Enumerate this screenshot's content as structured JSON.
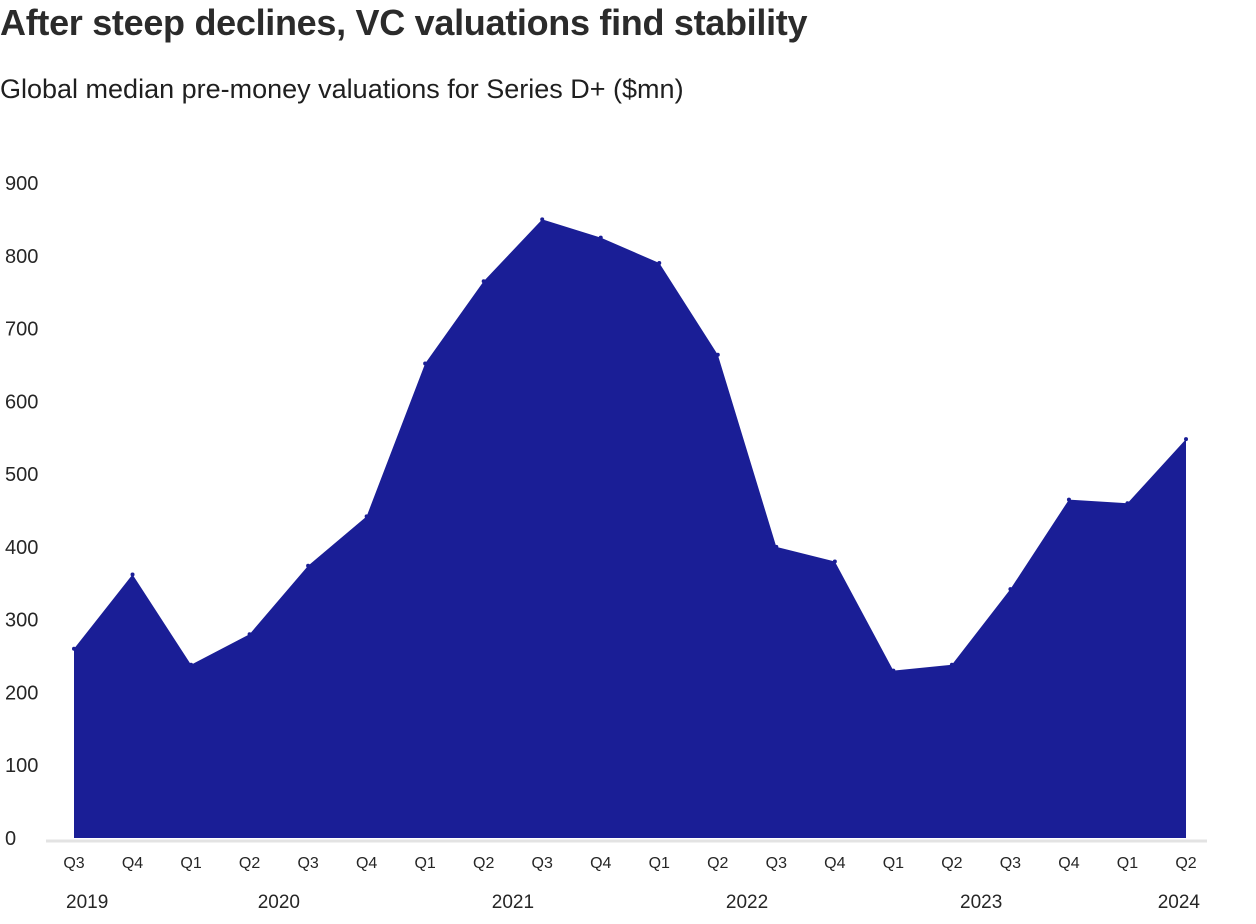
{
  "title": "After steep declines, VC valuations find stability",
  "subtitle": "Global median pre-money valuations for Series D+ ($mn)",
  "colors": {
    "area": "#1a1e96",
    "baseline": "#e3e3e3",
    "text": "#262626"
  },
  "chart_data": {
    "type": "area",
    "title": "After steep declines, VC valuations find stability",
    "subtitle": "Global median pre-money valuations for Series D+ ($mn)",
    "xlabel": "",
    "ylabel": "",
    "ylim": [
      0,
      900
    ],
    "yticks": [
      0,
      100,
      200,
      300,
      400,
      500,
      600,
      700,
      800,
      900
    ],
    "grid": false,
    "legend": "none",
    "categories": [
      "Q3",
      "Q4",
      "Q1",
      "Q2",
      "Q3",
      "Q4",
      "Q1",
      "Q2",
      "Q3",
      "Q4",
      "Q1",
      "Q2",
      "Q3",
      "Q4",
      "Q1",
      "Q2",
      "Q3",
      "Q4",
      "Q1",
      "Q2"
    ],
    "periods": [
      "2019 Q3",
      "2019 Q4",
      "2020 Q1",
      "2020 Q2",
      "2020 Q3",
      "2020 Q4",
      "2021 Q1",
      "2021 Q2",
      "2021 Q3",
      "2021 Q4",
      "2022 Q1",
      "2022 Q2",
      "2022 Q3",
      "2022 Q4",
      "2023 Q1",
      "2023 Q2",
      "2023 Q3",
      "2023 Q4",
      "2024 Q1",
      "2024 Q2"
    ],
    "years": [
      {
        "label": "2019",
        "start": 0,
        "end": 1
      },
      {
        "label": "2020",
        "start": 2,
        "end": 5
      },
      {
        "label": "2021",
        "start": 6,
        "end": 9
      },
      {
        "label": "2022",
        "start": 10,
        "end": 13
      },
      {
        "label": "2023",
        "start": 14,
        "end": 17
      },
      {
        "label": "2024",
        "start": 18,
        "end": 19
      }
    ],
    "series": [
      {
        "values": [
          260,
          362,
          238,
          280,
          374,
          442,
          652,
          765,
          850,
          825,
          790,
          664,
          400,
          380,
          230,
          238,
          342,
          465,
          460,
          548
        ]
      }
    ]
  }
}
